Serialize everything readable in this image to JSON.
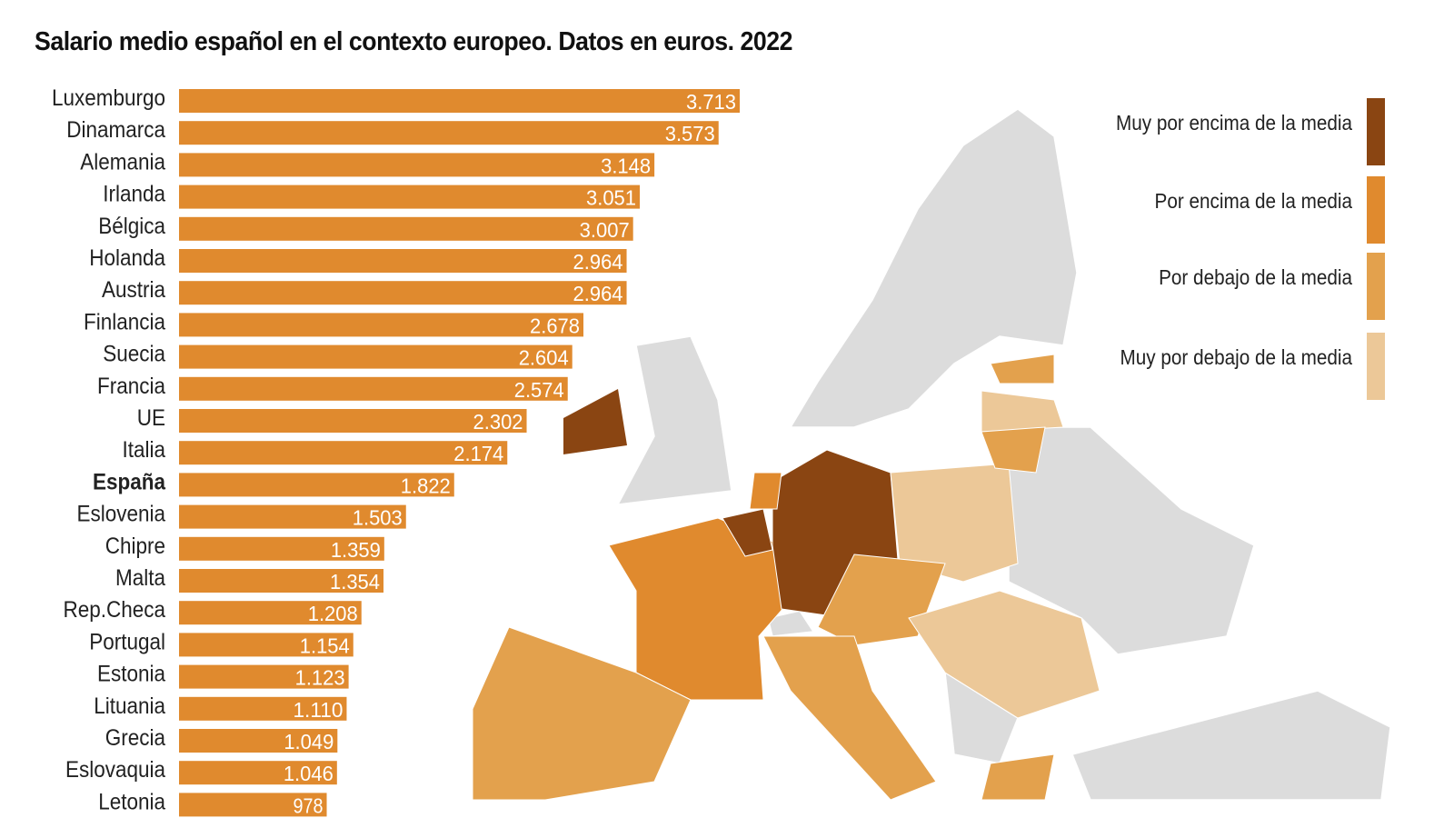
{
  "chart_data": {
    "type": "bar",
    "orientation": "horizontal",
    "title": "Salario medio español en el contexto europeo. Datos en euros. 2022",
    "categories": [
      "Luxemburgo",
      "Dinamarca",
      "Alemania",
      "Irlanda",
      "Bélgica",
      "Holanda",
      "Austria",
      "Finlancia",
      "Suecia",
      "Francia",
      "UE",
      "Italia",
      "España",
      "Eslovenia",
      "Chipre",
      "Malta",
      "Rep.Checa",
      "Portugal",
      "Estonia",
      "Lituania",
      "Grecia",
      "Eslovaquia",
      "Letonia"
    ],
    "values": [
      3713,
      3573,
      3148,
      3051,
      3007,
      2964,
      2964,
      2678,
      2604,
      2574,
      2302,
      2174,
      1822,
      1503,
      1359,
      1354,
      1208,
      1154,
      1123,
      1110,
      1049,
      1046,
      978
    ],
    "value_labels": [
      "3.713",
      "3.573",
      "3.148",
      "3.051",
      "3.007",
      "2.964",
      "2.964",
      "2.678",
      "2.604",
      "2.574",
      "2.302",
      "2.174",
      "1.822",
      "1.503",
      "1.359",
      "1.354",
      "1.208",
      "1.154",
      "1.123",
      "1.110",
      "1.049",
      "1.046",
      "978"
    ],
    "highlight": "España",
    "bar_color": "#e08a2e",
    "xlabel": "",
    "ylabel": "",
    "legend": [
      {
        "label": "Muy por encima de la media",
        "color": "#8a4512"
      },
      {
        "label": "Por encima de la media",
        "color": "#e08a2e"
      },
      {
        "label": "Por debajo de la media",
        "color": "#e3a14d"
      },
      {
        "label": "Muy por debajo de la media",
        "color": "#ecc898"
      }
    ],
    "legend_position": "top-right"
  }
}
